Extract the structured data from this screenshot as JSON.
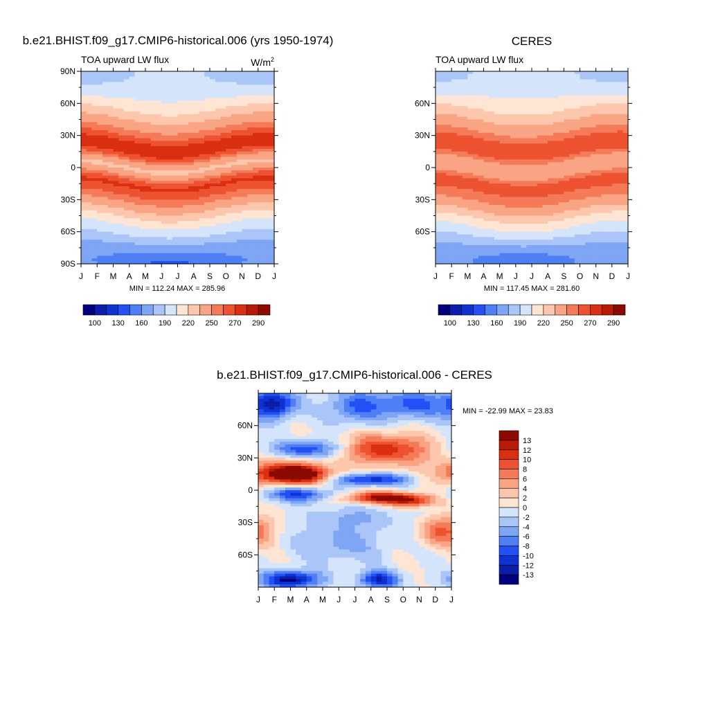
{
  "figure": {
    "months": [
      "J",
      "F",
      "M",
      "A",
      "M",
      "J",
      "J",
      "A",
      "S",
      "O",
      "N",
      "D",
      "J"
    ],
    "panels": [
      {
        "title": "b.e21.BHIST.f09_g17.CMIP6-historical.006 (yrs 1950-1974)",
        "left_label": "TOA upward LW flux",
        "right_label": "W/m",
        "right_label_sup": "2",
        "stats": "MIN = 112.24 MAX = 285.96",
        "lat_ticks": [
          "90N",
          "60N",
          "30N",
          "0",
          "30S",
          "60S",
          "90S"
        ]
      },
      {
        "title": "CERES",
        "left_label": "TOA upward LW flux",
        "stats": "MIN = 117.45 MAX = 281.60",
        "lat_ticks": [
          "60N",
          "30N",
          "0",
          "30S",
          "60S"
        ]
      },
      {
        "title": "b.e21.BHIST.f09_g17.CMIP6-historical.006 - CERES",
        "stats": "MIN = -22.99 MAX =  23.83",
        "lat_ticks": [
          "60N",
          "30N",
          "0",
          "30S",
          "60S"
        ]
      }
    ],
    "colorbar_top": {
      "colors": [
        "#00007f",
        "#0a1eaa",
        "#0f32d2",
        "#2350f5",
        "#4f7ff5",
        "#7fa5f5",
        "#aac5f8",
        "#d4e4fb",
        "#fee4d3",
        "#fcc7ad",
        "#f9a584",
        "#f57a58",
        "#ed5330",
        "#da2f10",
        "#b81a05",
        "#8c0a00"
      ],
      "labels": [
        "100",
        "130",
        "160",
        "190",
        "220",
        "250",
        "270",
        "290"
      ]
    },
    "colorbar_diff": {
      "colors": [
        "#8c0a00",
        "#b81a05",
        "#da2f10",
        "#ed5330",
        "#f57a58",
        "#f9a584",
        "#fcc7ad",
        "#fee4d3",
        "#d4e4fb",
        "#aac5f8",
        "#7fa5f5",
        "#4f7ff5",
        "#2350f5",
        "#0f32d2",
        "#0a1eaa",
        "#00007f"
      ],
      "labels": [
        "13",
        "12",
        "10",
        "8",
        "6",
        "4",
        "2",
        "0",
        "-2",
        "-4",
        "-6",
        "-8",
        "-10",
        "-12",
        "-13"
      ]
    }
  },
  "chart_data": [
    {
      "type": "heatmap",
      "title": "b.e21.BHIST.f09_g17.CMIP6-historical.006 (yrs 1950-1974)",
      "variable": "TOA upward LW flux",
      "units": "W/m2",
      "x": [
        "J",
        "F",
        "M",
        "A",
        "M",
        "J",
        "J",
        "A",
        "S",
        "O",
        "N",
        "D",
        "J"
      ],
      "ylim": [
        -90,
        90
      ],
      "zmin": 112.24,
      "zmax": 285.96,
      "profile_lat": [
        -90,
        -80,
        -70,
        -60,
        -50,
        -40,
        -30,
        -20,
        -15,
        -10,
        -5,
        0,
        5,
        10,
        15,
        20,
        25,
        30,
        40,
        50,
        60,
        70,
        80,
        90
      ],
      "profile_annual_mean": [
        150,
        160,
        175,
        195,
        210,
        232,
        252,
        268,
        272,
        262,
        245,
        232,
        238,
        258,
        272,
        278,
        272,
        262,
        245,
        228,
        210,
        200,
        190,
        185
      ],
      "seasonal_shift_deg": 6
    },
    {
      "type": "heatmap",
      "title": "CERES",
      "variable": "TOA upward LW flux",
      "x": [
        "J",
        "F",
        "M",
        "A",
        "M",
        "J",
        "J",
        "A",
        "S",
        "O",
        "N",
        "D",
        "J"
      ],
      "ylim": [
        -90,
        90
      ],
      "zmin": 117.45,
      "zmax": 281.6,
      "profile_lat": [
        -90,
        -80,
        -70,
        -60,
        -50,
        -40,
        -30,
        -20,
        -15,
        -10,
        -5,
        0,
        5,
        10,
        15,
        20,
        25,
        30,
        40,
        50,
        60,
        70,
        80,
        90
      ],
      "profile_annual_mean": [
        158,
        163,
        178,
        198,
        214,
        235,
        252,
        262,
        268,
        258,
        245,
        238,
        242,
        255,
        266,
        270,
        265,
        256,
        242,
        228,
        212,
        202,
        194,
        190
      ],
      "seasonal_shift_deg": 6
    },
    {
      "type": "heatmap",
      "title": "b.e21.BHIST.f09_g17.CMIP6-historical.006 - CERES",
      "x": [
        "J",
        "F",
        "M",
        "A",
        "M",
        "J",
        "J",
        "A",
        "S",
        "O",
        "N",
        "D",
        "J"
      ],
      "ylim": [
        -90,
        90
      ],
      "zmin": -22.99,
      "zmax": 23.83,
      "features": [
        {
          "month": 3.2,
          "lat": 14,
          "amp": 16,
          "wm": 1.5,
          "wl": 6
        },
        {
          "month": 2.5,
          "lat": 20,
          "amp": 6,
          "wm": 2.0,
          "wl": 8
        },
        {
          "month": 3.5,
          "lat": -4,
          "amp": -10,
          "wm": 1.5,
          "wl": 5
        },
        {
          "month": 8.0,
          "lat": 10,
          "amp": -12,
          "wm": 1.6,
          "wl": 4
        },
        {
          "month": 8.5,
          "lat": -7,
          "amp": 13,
          "wm": 1.6,
          "wl": 4
        },
        {
          "month": 10.5,
          "lat": -10,
          "amp": 10,
          "wm": 1.0,
          "wl": 4
        },
        {
          "month": 8.3,
          "lat": 38,
          "amp": 10,
          "wm": 1.5,
          "wl": 10
        },
        {
          "month": 10.5,
          "lat": 38,
          "amp": 5,
          "wm": 1.2,
          "wl": 10
        },
        {
          "month": 4.0,
          "lat": 38,
          "amp": -10,
          "wm": 1.5,
          "wl": 6
        },
        {
          "month": 2.0,
          "lat": 80,
          "amp": -13,
          "wm": 1.0,
          "wl": 10
        },
        {
          "month": 7.0,
          "lat": 78,
          "amp": -8,
          "wm": 1.2,
          "wl": 12
        },
        {
          "month": 10.5,
          "lat": 80,
          "amp": -9,
          "wm": 1.5,
          "wl": 10
        },
        {
          "month": 1.0,
          "lat": -38,
          "amp": 7,
          "wm": 0.8,
          "wl": 10
        },
        {
          "month": 11.8,
          "lat": -38,
          "amp": 5,
          "wm": 0.6,
          "wl": 10
        },
        {
          "month": 3.0,
          "lat": -83,
          "amp": -14,
          "wm": 1.3,
          "wl": 6
        },
        {
          "month": 8.5,
          "lat": -83,
          "amp": -12,
          "wm": 0.9,
          "wl": 6
        },
        {
          "month": 6.0,
          "lat": -50,
          "amp": -5,
          "wm": 2.0,
          "wl": 12
        },
        {
          "month": 7.0,
          "lat": -25,
          "amp": -4,
          "wm": 2.0,
          "wl": 8
        }
      ]
    }
  ]
}
